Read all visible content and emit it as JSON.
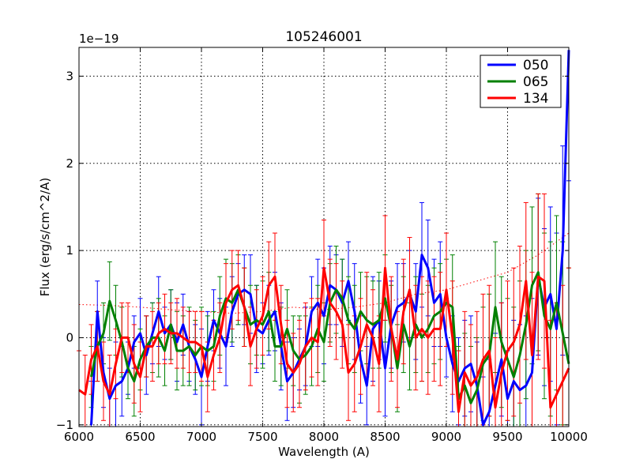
{
  "chart_data": {
    "type": "line",
    "title": "105246001",
    "xlabel": "Wavelength (A)",
    "ylabel": "Flux (erg/s/cm^2/A)",
    "offset_label": "1e−19",
    "xlim": [
      6000,
      10000
    ],
    "ylim": [
      -1.02,
      3.33
    ],
    "xticks": [
      6000,
      6500,
      7000,
      7500,
      8000,
      8500,
      9000,
      9500,
      10000
    ],
    "yticks": [
      -1,
      0,
      1,
      2,
      3
    ],
    "grid": true,
    "legend_position": "top-right",
    "series": [
      {
        "name": "050",
        "color": "#0000ff",
        "x": [
          6100,
          6150,
          6200,
          6250,
          6300,
          6350,
          6400,
          6450,
          6500,
          6550,
          6600,
          6650,
          6700,
          6750,
          6800,
          6850,
          6900,
          6950,
          7000,
          7050,
          7100,
          7150,
          7200,
          7250,
          7300,
          7350,
          7400,
          7450,
          7500,
          7550,
          7600,
          7650,
          7700,
          7750,
          7800,
          7850,
          7900,
          7950,
          8000,
          8050,
          8100,
          8150,
          8200,
          8250,
          8300,
          8350,
          8400,
          8450,
          8500,
          8550,
          8600,
          8650,
          8700,
          8750,
          8800,
          8850,
          8900,
          8950,
          9000,
          9050,
          9100,
          9150,
          9200,
          9250,
          9300,
          9350,
          9400,
          9450,
          9500,
          9550,
          9600,
          9650,
          9700,
          9750,
          9800,
          9850,
          9900,
          9950,
          10000
        ],
        "values": [
          -1.0,
          0.3,
          -0.4,
          -0.7,
          -0.55,
          -0.5,
          -0.35,
          -0.05,
          0.05,
          -0.2,
          0.05,
          0.3,
          0.05,
          0.15,
          -0.05,
          0.15,
          -0.1,
          -0.25,
          -0.45,
          -0.1,
          0.2,
          0.05,
          -0.1,
          0.3,
          0.5,
          0.55,
          0.5,
          0.1,
          0.05,
          0.2,
          0.3,
          -0.1,
          -0.5,
          -0.4,
          -0.25,
          -0.1,
          0.3,
          0.4,
          0.25,
          0.6,
          0.55,
          0.4,
          0.65,
          0.3,
          -0.25,
          -0.55,
          0.1,
          0.2,
          -0.35,
          0.15,
          0.35,
          0.4,
          0.5,
          0.3,
          0.95,
          0.8,
          0.4,
          0.5,
          0.0,
          -0.3,
          -0.5,
          -0.35,
          -0.3,
          -0.55,
          -1.0,
          -0.85,
          -0.55,
          -0.25,
          -0.7,
          -0.5,
          -0.6,
          -0.55,
          -0.4,
          0.7,
          0.35,
          0.5,
          0.1,
          1.0,
          3.3
        ],
        "errors": [
          0.5,
          0.35,
          0.4,
          0.35,
          0.5,
          0.4,
          0.3,
          0.3,
          0.4,
          0.45,
          0.35,
          0.4,
          0.3,
          0.4,
          0.45,
          0.35,
          0.4,
          0.4,
          0.55,
          0.4,
          0.35,
          0.4,
          0.45,
          0.4,
          0.35,
          0.4,
          0.45,
          0.5,
          0.35,
          0.4,
          0.45,
          0.5,
          0.45,
          0.4,
          0.35,
          0.45,
          0.4,
          0.5,
          0.55,
          0.45,
          0.4,
          0.5,
          0.45,
          0.55,
          0.5,
          0.45,
          0.6,
          0.45,
          0.55,
          0.5,
          0.5,
          0.45,
          0.5,
          0.55,
          0.6,
          0.55,
          0.5,
          0.6,
          0.45,
          0.55,
          0.5,
          0.55,
          0.55,
          0.5,
          0.55,
          0.6,
          0.6,
          0.65,
          0.55,
          0.7,
          0.75,
          0.8,
          0.85,
          0.9,
          0.9,
          1.0,
          1.1,
          1.2,
          1.5
        ]
      },
      {
        "name": "065",
        "color": "#008000",
        "x": [
          6100,
          6150,
          6200,
          6250,
          6300,
          6350,
          6400,
          6450,
          6500,
          6550,
          6600,
          6650,
          6700,
          6750,
          6800,
          6850,
          6900,
          6950,
          7000,
          7050,
          7100,
          7150,
          7200,
          7250,
          7300,
          7350,
          7400,
          7450,
          7500,
          7550,
          7600,
          7650,
          7700,
          7750,
          7800,
          7850,
          7900,
          7950,
          8000,
          8050,
          8100,
          8150,
          8200,
          8250,
          8300,
          8350,
          8400,
          8450,
          8500,
          8550,
          8600,
          8650,
          8700,
          8750,
          8800,
          8850,
          8900,
          8950,
          9000,
          9050,
          9100,
          9150,
          9200,
          9250,
          9300,
          9350,
          9400,
          9450,
          9500,
          9550,
          9600,
          9650,
          9700,
          9750,
          9800,
          9850,
          9900,
          9950,
          10000
        ],
        "values": [
          -0.45,
          -0.1,
          0.05,
          0.42,
          0.2,
          -0.05,
          -0.35,
          -0.5,
          -0.25,
          -0.1,
          0.0,
          0.0,
          -0.15,
          0.15,
          -0.15,
          -0.15,
          -0.1,
          -0.2,
          -0.1,
          -0.15,
          -0.1,
          0.25,
          0.45,
          0.4,
          0.55,
          0.35,
          0.15,
          0.2,
          0.15,
          0.3,
          -0.1,
          -0.1,
          0.1,
          -0.15,
          -0.25,
          -0.2,
          -0.1,
          0.1,
          -0.05,
          0.4,
          0.55,
          0.45,
          0.2,
          0.1,
          0.3,
          0.2,
          0.15,
          0.2,
          0.45,
          0.1,
          -0.35,
          0.15,
          -0.1,
          0.15,
          0.0,
          0.1,
          0.25,
          0.3,
          0.4,
          0.35,
          -0.7,
          -0.55,
          -0.75,
          -0.6,
          -0.3,
          -0.2,
          0.35,
          -0.05,
          -0.25,
          -0.45,
          -0.2,
          0.15,
          0.6,
          0.75,
          0.25,
          0.1,
          0.4,
          0.05,
          -0.3
        ],
        "errors": [
          0.35,
          0.4,
          0.35,
          0.45,
          0.4,
          0.4,
          0.35,
          0.4,
          0.35,
          0.35,
          0.4,
          0.45,
          0.4,
          0.4,
          0.45,
          0.4,
          0.45,
          0.4,
          0.45,
          0.4,
          0.4,
          0.45,
          0.45,
          0.45,
          0.4,
          0.45,
          0.45,
          0.4,
          0.5,
          0.45,
          0.4,
          0.45,
          0.45,
          0.4,
          0.5,
          0.45,
          0.45,
          0.5,
          0.45,
          0.45,
          0.5,
          0.45,
          0.5,
          0.5,
          0.45,
          0.5,
          0.5,
          0.55,
          0.5,
          0.5,
          0.5,
          0.55,
          0.5,
          0.55,
          0.5,
          0.5,
          0.55,
          0.55,
          0.5,
          0.6,
          0.6,
          0.6,
          0.65,
          0.6,
          0.65,
          0.7,
          0.75,
          0.75,
          0.7,
          0.8,
          0.85,
          0.85,
          0.9,
          0.9,
          0.95,
          1.0,
          1.0,
          1.05,
          1.1
        ]
      },
      {
        "name": "134",
        "color": "#ff0000",
        "x": [
          6000,
          6050,
          6100,
          6150,
          6200,
          6250,
          6300,
          6350,
          6400,
          6450,
          6500,
          6550,
          6600,
          6650,
          6700,
          6750,
          6800,
          6850,
          6900,
          6950,
          7000,
          7050,
          7100,
          7150,
          7200,
          7250,
          7300,
          7350,
          7400,
          7450,
          7500,
          7550,
          7600,
          7650,
          7700,
          7750,
          7800,
          7850,
          7900,
          7950,
          8000,
          8050,
          8100,
          8150,
          8200,
          8250,
          8300,
          8350,
          8400,
          8450,
          8500,
          8550,
          8600,
          8650,
          8700,
          8750,
          8800,
          8850,
          8900,
          8950,
          9000,
          9050,
          9100,
          9150,
          9200,
          9250,
          9300,
          9350,
          9400,
          9450,
          9500,
          9550,
          9600,
          9650,
          9700,
          9750,
          9800,
          9850,
          9900,
          9950,
          10000
        ],
        "values": [
          -0.6,
          -0.65,
          -0.25,
          -0.1,
          -0.5,
          -0.65,
          -0.3,
          0.0,
          0.0,
          -0.3,
          -0.45,
          -0.1,
          -0.1,
          0.05,
          0.1,
          0.05,
          0.05,
          0.0,
          -0.05,
          -0.05,
          -0.1,
          -0.45,
          -0.2,
          0.0,
          0.4,
          0.55,
          0.6,
          0.35,
          -0.1,
          0.1,
          0.25,
          0.6,
          0.7,
          0.15,
          -0.3,
          -0.4,
          -0.3,
          -0.1,
          0.0,
          -0.05,
          0.8,
          0.4,
          0.3,
          0.15,
          -0.4,
          -0.3,
          -0.1,
          0.15,
          0.0,
          -0.3,
          0.8,
          0.1,
          -0.25,
          0.3,
          0.55,
          0.0,
          0.1,
          0.0,
          0.1,
          0.1,
          0.55,
          0.0,
          -0.85,
          -0.4,
          -0.55,
          -0.45,
          -0.25,
          -0.15,
          -0.8,
          -0.4,
          -0.15,
          -0.05,
          0.15,
          0.65,
          -0.2,
          0.7,
          0.65,
          -0.8,
          -0.65,
          -0.5,
          -0.35
        ],
        "errors": [
          0.45,
          0.45,
          0.4,
          0.4,
          0.45,
          0.45,
          0.4,
          0.4,
          0.4,
          0.45,
          0.4,
          0.35,
          0.4,
          0.35,
          0.4,
          0.35,
          0.4,
          0.35,
          0.35,
          0.35,
          0.4,
          0.4,
          0.4,
          0.4,
          0.45,
          0.45,
          0.4,
          0.45,
          0.45,
          0.45,
          0.45,
          0.5,
          0.5,
          0.45,
          0.5,
          0.45,
          0.5,
          0.5,
          0.45,
          0.5,
          0.55,
          0.5,
          0.55,
          0.5,
          0.55,
          0.55,
          0.55,
          0.6,
          0.55,
          0.55,
          0.6,
          0.6,
          0.55,
          0.6,
          0.6,
          0.6,
          0.6,
          0.65,
          0.6,
          0.65,
          0.65,
          0.65,
          0.7,
          0.7,
          0.7,
          0.75,
          0.75,
          0.75,
          0.8,
          0.8,
          0.8,
          0.85,
          0.9,
          0.9,
          0.95,
          0.95,
          1.0,
          1.0,
          1.05,
          1.1,
          1.15
        ]
      }
    ],
    "reference_curve": {
      "color": "#ff0000",
      "style": "dotted",
      "x": [
        6000,
        6250,
        6500,
        6750,
        7000,
        7250,
        7500,
        7750,
        8000,
        8250,
        8500,
        8750,
        9000,
        9250,
        9500,
        9750,
        10000
      ],
      "values": [
        0.38,
        0.37,
        0.35,
        0.32,
        0.3,
        0.28,
        0.3,
        0.35,
        0.32,
        0.35,
        0.4,
        0.5,
        0.55,
        0.65,
        0.75,
        0.95,
        1.2
      ]
    }
  }
}
